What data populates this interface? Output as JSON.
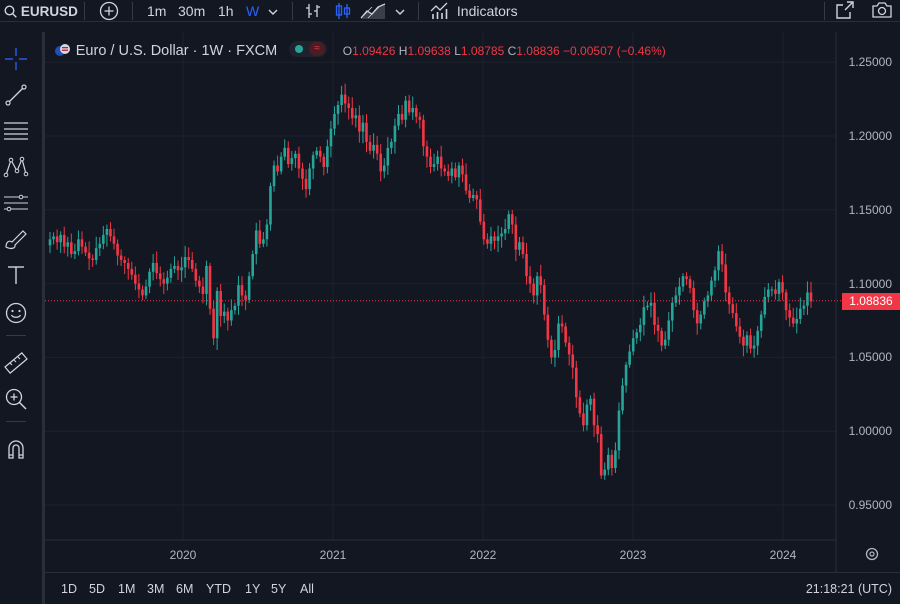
{
  "toolbar": {
    "symbol": "EURUSD",
    "intervals": [
      "1m",
      "30m",
      "1h",
      "W"
    ],
    "active_interval": "W",
    "indicators_label": "Indicators"
  },
  "legend": {
    "title": "Euro / U.S. Dollar · 1W · FXCM",
    "open_label": "O",
    "open": "1.09426",
    "high_label": "H",
    "high": "1.09638",
    "low_label": "L",
    "low": "1.08785",
    "close_label": "C",
    "close": "1.08836",
    "change": "−0.00507 (−0.46%)"
  },
  "price_badge": "1.08836",
  "ranges": [
    "1D",
    "5D",
    "1M",
    "3M",
    "6M",
    "YTD",
    "1Y",
    "5Y",
    "All"
  ],
  "clock": "21:18:21 (UTC)",
  "colors": {
    "up": "#26a69a",
    "down": "#f23645",
    "background": "#131722",
    "grid": "#1e222d",
    "accent": "#2962ff"
  },
  "chart_data": {
    "type": "candlestick",
    "title": "Euro / U.S. Dollar · 1W · FXCM",
    "y_ticks": [
      "1.25000",
      "1.20000",
      "1.15000",
      "1.10000",
      "1.05000",
      "1.00000",
      "0.95000"
    ],
    "x_ticks": [
      "2020",
      "2021",
      "2022",
      "2023",
      "2024"
    ],
    "ylim": [
      0.935,
      1.26
    ],
    "last_price": 1.08836,
    "series": [
      {
        "values": [
          1.13,
          1.132,
          1.128,
          1.133,
          1.125,
          1.128,
          1.12,
          1.122,
          1.13,
          1.125,
          1.121,
          1.117,
          1.116,
          1.124,
          1.127,
          1.133,
          1.137,
          1.132,
          1.127,
          1.119,
          1.116,
          1.114,
          1.11,
          1.106,
          1.1,
          1.096,
          1.092,
          1.098,
          1.108,
          1.114,
          1.107,
          1.103,
          1.1,
          1.104,
          1.11,
          1.112,
          1.109,
          1.111,
          1.118,
          1.116,
          1.11,
          1.102,
          1.098,
          1.093,
          1.112,
          1.083,
          1.063,
          1.095,
          1.078,
          1.081,
          1.075,
          1.082,
          1.085,
          1.099,
          1.092,
          1.089,
          1.105,
          1.12,
          1.136,
          1.127,
          1.13,
          1.14,
          1.166,
          1.18,
          1.176,
          1.186,
          1.192,
          1.181,
          1.185,
          1.188,
          1.178,
          1.171,
          1.164,
          1.178,
          1.187,
          1.19,
          1.186,
          1.179,
          1.193,
          1.205,
          1.215,
          1.221,
          1.228,
          1.222,
          1.219,
          1.212,
          1.214,
          1.203,
          1.209,
          1.196,
          1.19,
          1.194,
          1.188,
          1.176,
          1.18,
          1.192,
          1.196,
          1.207,
          1.215,
          1.211,
          1.224,
          1.216,
          1.219,
          1.213,
          1.211,
          1.193,
          1.186,
          1.179,
          1.181,
          1.186,
          1.178,
          1.176,
          1.173,
          1.178,
          1.172,
          1.18,
          1.174,
          1.163,
          1.158,
          1.16,
          1.157,
          1.142,
          1.13,
          1.127,
          1.132,
          1.129,
          1.132,
          1.134,
          1.137,
          1.147,
          1.14,
          1.123,
          1.128,
          1.12,
          1.105,
          1.1,
          1.092,
          1.105,
          1.099,
          1.079,
          1.062,
          1.05,
          1.055,
          1.073,
          1.071,
          1.06,
          1.052,
          1.043,
          1.023,
          1.012,
          1.004,
          1.018,
          1.022,
          1.004,
          0.998,
          0.97,
          0.974,
          0.984,
          0.975,
          0.987,
          1.014,
          1.031,
          1.045,
          1.054,
          1.063,
          1.067,
          1.072,
          1.084,
          1.085,
          1.087,
          1.072,
          1.068,
          1.058,
          1.062,
          1.075,
          1.087,
          1.092,
          1.098,
          1.105,
          1.103,
          1.097,
          1.082,
          1.073,
          1.079,
          1.088,
          1.092,
          1.102,
          1.109,
          1.122,
          1.113,
          1.094,
          1.086,
          1.08,
          1.071,
          1.064,
          1.058,
          1.065,
          1.056,
          1.058,
          1.068,
          1.079,
          1.091,
          1.096,
          1.096,
          1.093,
          1.101,
          1.094,
          1.082,
          1.077,
          1.073,
          1.076,
          1.083,
          1.085,
          1.094,
          1.088
        ]
      }
    ]
  }
}
